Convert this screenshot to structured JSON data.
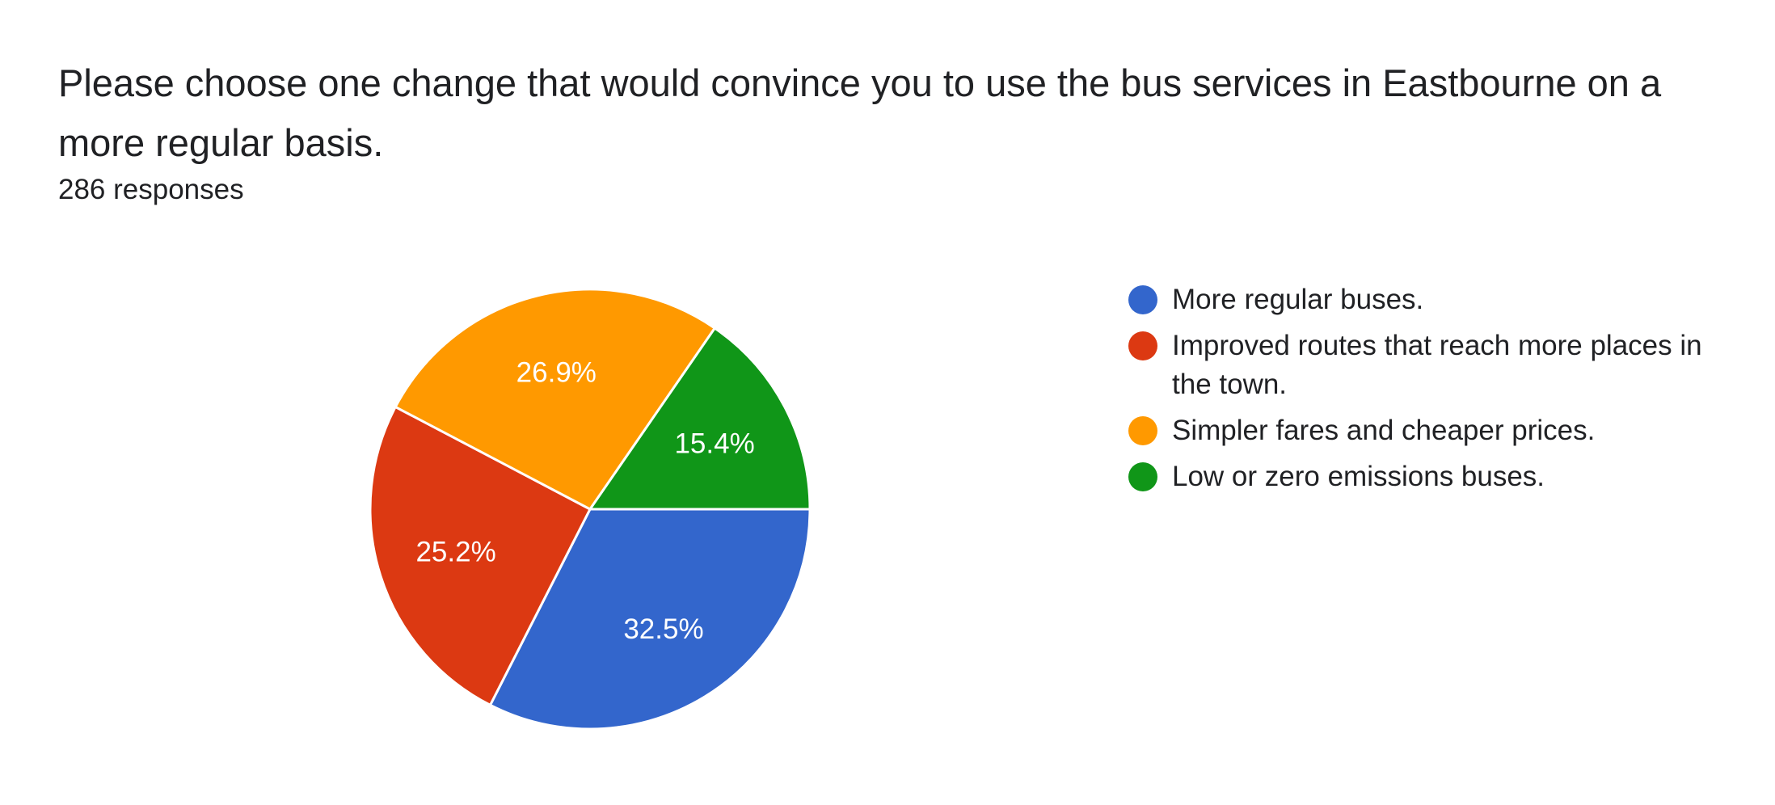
{
  "question": {
    "title": "Please choose one change that would convince you to use the bus services in Eastbourne on a more regular basis.",
    "responses_label": "286 responses"
  },
  "chart_data": {
    "type": "pie",
    "title": "Please choose one change that would convince you to use the bus services in Eastbourne on a more regular basis.",
    "subtitle": "286 responses",
    "categories": [
      "More regular buses.",
      "Improved routes that reach more places in the town.",
      "Simpler fares and cheaper prices.",
      "Low or zero emissions buses."
    ],
    "values": [
      32.5,
      25.2,
      26.9,
      15.4
    ],
    "labels": [
      "32.5%",
      "25.2%",
      "26.9%",
      "15.4%"
    ],
    "colors": [
      "#3366cc",
      "#dc3912",
      "#ff9900",
      "#109618"
    ],
    "legend_position": "right",
    "start_direction": "3 o'clock, clockwise"
  }
}
